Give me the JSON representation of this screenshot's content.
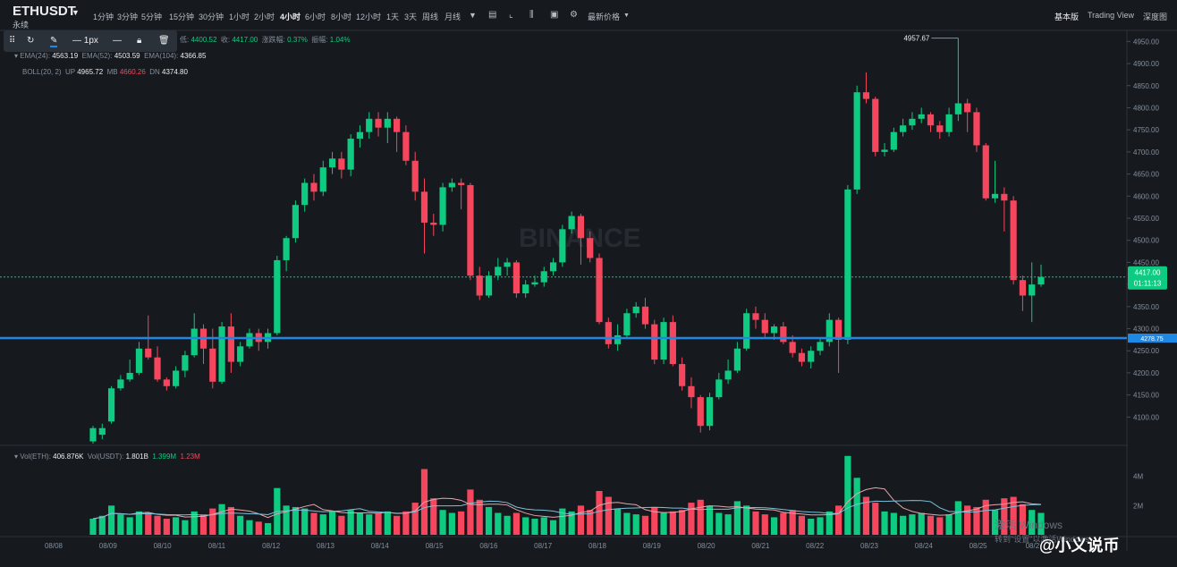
{
  "header": {
    "symbol": "ETHUSDT",
    "subtitle": "永续",
    "intervals": [
      "1分钟",
      "3分钟",
      "5分钟",
      "15分钟",
      "30分钟",
      "1小时",
      "2小时",
      "4小时",
      "6小时",
      "8小时",
      "12小时",
      "1天",
      "3天",
      "周线",
      "月线"
    ],
    "active_interval": "4小时",
    "price_type": "最新价格",
    "views": [
      "基本版",
      "Trading View",
      "深度图"
    ],
    "active_view": "基本版"
  },
  "drawbar": {
    "width_label": "1px"
  },
  "legend": {
    "ohlc": {
      "low_label": "低:",
      "low": "4400.52",
      "close_label": "收:",
      "close": "4417.00",
      "chg_label": "涨跌幅:",
      "chg": "0.37%",
      "amp_label": "振幅:",
      "amp": "1.04%"
    },
    "ema": {
      "ema24_label": "EMA(24):",
      "ema24": "4563.19",
      "ema52_label": "EMA(52):",
      "ema52": "4503.59",
      "ema104_label": "EMA(104):",
      "ema104": "4366.85"
    },
    "boll": {
      "label": "BOLL(20, 2)",
      "up_label": "UP",
      "up": "4965.72",
      "mb_label": "MB",
      "mb": "4660.26",
      "dn_label": "DN",
      "dn": "4374.80"
    },
    "vol": {
      "eth_label": "Vol(ETH):",
      "eth": "406.876K",
      "usdt_label": "Vol(USDT):",
      "usdt": "1.801B",
      "ma5": "1.399M",
      "ma10": "1.23M"
    }
  },
  "colors": {
    "up": "#0ecb81",
    "down": "#f6465d",
    "hline": "#1e88e5",
    "price_tag": "#0ecb81",
    "ma5": "#e6a5ae",
    "ma10": "#7ac1d9"
  },
  "chart_data": {
    "type": "candlestick",
    "x_ticks": [
      "08/08",
      "08/09",
      "08/10",
      "08/11",
      "08/12",
      "08/13",
      "08/14",
      "08/15",
      "08/16",
      "08/17",
      "08/18",
      "08/19",
      "08/20",
      "08/21",
      "08/22",
      "08/23",
      "08/24",
      "08/25",
      "08/2"
    ],
    "y_ticks": [
      "4950.00",
      "4900.00",
      "4850.00",
      "4800.00",
      "4750.00",
      "4700.00",
      "4650.00",
      "4600.00",
      "4550.00",
      "4500.00",
      "4450.00",
      "4400.00",
      "4350.00",
      "4300.00",
      "4250.00",
      "4200.00",
      "4150.00",
      "4100.00"
    ],
    "vol_ticks": [
      "4M",
      "2M"
    ],
    "ylim": [
      4040,
      4975
    ],
    "vol_max": 6,
    "candles": [
      {
        "o": 4045,
        "c": 4075,
        "h": 4080,
        "l": 4040,
        "v": 1.1
      },
      {
        "o": 4060,
        "c": 4075,
        "h": 4085,
        "l": 4050,
        "v": 1.3
      },
      {
        "o": 4090,
        "c": 4165,
        "h": 4170,
        "l": 4085,
        "v": 2.0
      },
      {
        "o": 4165,
        "c": 4185,
        "h": 4195,
        "l": 4160,
        "v": 1.4
      },
      {
        "o": 4185,
        "c": 4200,
        "h": 4230,
        "l": 4180,
        "v": 1.2
      },
      {
        "o": 4200,
        "c": 4255,
        "h": 4270,
        "l": 4195,
        "v": 1.6
      },
      {
        "o": 4255,
        "c": 4235,
        "h": 4330,
        "l": 4230,
        "v": 1.5
      },
      {
        "o": 4235,
        "c": 4185,
        "h": 4260,
        "l": 4180,
        "v": 1.3
      },
      {
        "o": 4185,
        "c": 4170,
        "h": 4190,
        "l": 4160,
        "v": 1.1
      },
      {
        "o": 4170,
        "c": 4205,
        "h": 4215,
        "l": 4165,
        "v": 1.2
      },
      {
        "o": 4205,
        "c": 4240,
        "h": 4250,
        "l": 4190,
        "v": 1.0
      },
      {
        "o": 4240,
        "c": 4300,
        "h": 4335,
        "l": 4235,
        "v": 1.6
      },
      {
        "o": 4300,
        "c": 4255,
        "h": 4310,
        "l": 4220,
        "v": 1.4
      },
      {
        "o": 4255,
        "c": 4180,
        "h": 4300,
        "l": 4165,
        "v": 1.8
      },
      {
        "o": 4180,
        "c": 4305,
        "h": 4315,
        "l": 4175,
        "v": 2.1
      },
      {
        "o": 4305,
        "c": 4225,
        "h": 4335,
        "l": 4200,
        "v": 1.9
      },
      {
        "o": 4225,
        "c": 4260,
        "h": 4270,
        "l": 4215,
        "v": 1.3
      },
      {
        "o": 4260,
        "c": 4290,
        "h": 4300,
        "l": 4255,
        "v": 1.0
      },
      {
        "o": 4290,
        "c": 4270,
        "h": 4300,
        "l": 4250,
        "v": 0.9
      },
      {
        "o": 4270,
        "c": 4290,
        "h": 4300,
        "l": 4255,
        "v": 0.8
      },
      {
        "o": 4290,
        "c": 4455,
        "h": 4465,
        "l": 4285,
        "v": 3.2
      },
      {
        "o": 4455,
        "c": 4505,
        "h": 4510,
        "l": 4430,
        "v": 2.0
      },
      {
        "o": 4505,
        "c": 4580,
        "h": 4590,
        "l": 4495,
        "v": 1.9
      },
      {
        "o": 4580,
        "c": 4630,
        "h": 4640,
        "l": 4565,
        "v": 1.8
      },
      {
        "o": 4630,
        "c": 4610,
        "h": 4650,
        "l": 4590,
        "v": 1.5
      },
      {
        "o": 4610,
        "c": 4665,
        "h": 4680,
        "l": 4600,
        "v": 1.4
      },
      {
        "o": 4665,
        "c": 4685,
        "h": 4700,
        "l": 4650,
        "v": 1.6
      },
      {
        "o": 4685,
        "c": 4660,
        "h": 4700,
        "l": 4640,
        "v": 1.3
      },
      {
        "o": 4660,
        "c": 4730,
        "h": 4740,
        "l": 4645,
        "v": 1.7
      },
      {
        "o": 4730,
        "c": 4745,
        "h": 4760,
        "l": 4710,
        "v": 1.5
      },
      {
        "o": 4745,
        "c": 4775,
        "h": 4790,
        "l": 4730,
        "v": 1.4
      },
      {
        "o": 4775,
        "c": 4755,
        "h": 4790,
        "l": 4735,
        "v": 1.5
      },
      {
        "o": 4755,
        "c": 4775,
        "h": 4790,
        "l": 4720,
        "v": 1.6
      },
      {
        "o": 4775,
        "c": 4745,
        "h": 4780,
        "l": 4700,
        "v": 1.3
      },
      {
        "o": 4745,
        "c": 4680,
        "h": 4760,
        "l": 4670,
        "v": 1.6
      },
      {
        "o": 4680,
        "c": 4610,
        "h": 4700,
        "l": 4590,
        "v": 2.2
      },
      {
        "o": 4610,
        "c": 4540,
        "h": 4640,
        "l": 4470,
        "v": 4.5
      },
      {
        "o": 4540,
        "c": 4535,
        "h": 4560,
        "l": 4510,
        "v": 2.5
      },
      {
        "o": 4535,
        "c": 4620,
        "h": 4630,
        "l": 4520,
        "v": 1.7
      },
      {
        "o": 4620,
        "c": 4630,
        "h": 4640,
        "l": 4610,
        "v": 1.5
      },
      {
        "o": 4630,
        "c": 4625,
        "h": 4640,
        "l": 4570,
        "v": 1.6
      },
      {
        "o": 4625,
        "c": 4420,
        "h": 4630,
        "l": 4410,
        "v": 3.1
      },
      {
        "o": 4420,
        "c": 4375,
        "h": 4440,
        "l": 4365,
        "v": 2.4
      },
      {
        "o": 4375,
        "c": 4420,
        "h": 4430,
        "l": 4370,
        "v": 1.9
      },
      {
        "o": 4420,
        "c": 4440,
        "h": 4460,
        "l": 4410,
        "v": 1.5
      },
      {
        "o": 4440,
        "c": 4450,
        "h": 4460,
        "l": 4420,
        "v": 1.3
      },
      {
        "o": 4450,
        "c": 4380,
        "h": 4455,
        "l": 4370,
        "v": 1.5
      },
      {
        "o": 4380,
        "c": 4400,
        "h": 4410,
        "l": 4370,
        "v": 1.2
      },
      {
        "o": 4400,
        "c": 4405,
        "h": 4420,
        "l": 4395,
        "v": 1.1
      },
      {
        "o": 4405,
        "c": 4430,
        "h": 4440,
        "l": 4395,
        "v": 1.2
      },
      {
        "o": 4430,
        "c": 4450,
        "h": 4460,
        "l": 4420,
        "v": 1.0
      },
      {
        "o": 4450,
        "c": 4525,
        "h": 4535,
        "l": 4440,
        "v": 1.8
      },
      {
        "o": 4525,
        "c": 4555,
        "h": 4565,
        "l": 4515,
        "v": 1.6
      },
      {
        "o": 4555,
        "c": 4505,
        "h": 4560,
        "l": 4445,
        "v": 2.0
      },
      {
        "o": 4505,
        "c": 4460,
        "h": 4520,
        "l": 4450,
        "v": 1.7
      },
      {
        "o": 4460,
        "c": 4315,
        "h": 4470,
        "l": 4310,
        "v": 3.0
      },
      {
        "o": 4315,
        "c": 4265,
        "h": 4325,
        "l": 4255,
        "v": 2.6
      },
      {
        "o": 4265,
        "c": 4285,
        "h": 4310,
        "l": 4250,
        "v": 1.8
      },
      {
        "o": 4285,
        "c": 4335,
        "h": 4345,
        "l": 4280,
        "v": 1.5
      },
      {
        "o": 4335,
        "c": 4350,
        "h": 4360,
        "l": 4325,
        "v": 1.4
      },
      {
        "o": 4350,
        "c": 4310,
        "h": 4370,
        "l": 4300,
        "v": 1.3
      },
      {
        "o": 4310,
        "c": 4230,
        "h": 4320,
        "l": 4220,
        "v": 1.9
      },
      {
        "o": 4230,
        "c": 4315,
        "h": 4325,
        "l": 4220,
        "v": 1.5
      },
      {
        "o": 4315,
        "c": 4220,
        "h": 4330,
        "l": 4215,
        "v": 1.6
      },
      {
        "o": 4220,
        "c": 4170,
        "h": 4235,
        "l": 4160,
        "v": 1.7
      },
      {
        "o": 4170,
        "c": 4145,
        "h": 4190,
        "l": 4120,
        "v": 2.2
      },
      {
        "o": 4145,
        "c": 4080,
        "h": 4150,
        "l": 4065,
        "v": 2.4
      },
      {
        "o": 4080,
        "c": 4145,
        "h": 4155,
        "l": 4070,
        "v": 2.0
      },
      {
        "o": 4145,
        "c": 4185,
        "h": 4200,
        "l": 4140,
        "v": 1.5
      },
      {
        "o": 4185,
        "c": 4205,
        "h": 4230,
        "l": 4175,
        "v": 1.4
      },
      {
        "o": 4205,
        "c": 4255,
        "h": 4270,
        "l": 4200,
        "v": 2.3
      },
      {
        "o": 4255,
        "c": 4335,
        "h": 4345,
        "l": 4250,
        "v": 2.0
      },
      {
        "o": 4335,
        "c": 4320,
        "h": 4350,
        "l": 4300,
        "v": 1.6
      },
      {
        "o": 4320,
        "c": 4290,
        "h": 4335,
        "l": 4280,
        "v": 1.4
      },
      {
        "o": 4290,
        "c": 4305,
        "h": 4310,
        "l": 4275,
        "v": 1.2
      },
      {
        "o": 4305,
        "c": 4270,
        "h": 4315,
        "l": 4265,
        "v": 1.5
      },
      {
        "o": 4270,
        "c": 4245,
        "h": 4285,
        "l": 4235,
        "v": 1.7
      },
      {
        "o": 4245,
        "c": 4225,
        "h": 4255,
        "l": 4215,
        "v": 1.3
      },
      {
        "o": 4225,
        "c": 4250,
        "h": 4260,
        "l": 4210,
        "v": 1.1
      },
      {
        "o": 4250,
        "c": 4270,
        "h": 4280,
        "l": 4240,
        "v": 1.2
      },
      {
        "o": 4270,
        "c": 4320,
        "h": 4335,
        "l": 4260,
        "v": 1.6
      },
      {
        "o": 4320,
        "c": 4275,
        "h": 4325,
        "l": 4200,
        "v": 2.0
      },
      {
        "o": 4275,
        "c": 4615,
        "h": 4625,
        "l": 4265,
        "v": 5.4
      },
      {
        "o": 4615,
        "c": 4835,
        "h": 4850,
        "l": 4605,
        "v": 3.9
      },
      {
        "o": 4835,
        "c": 4820,
        "h": 4880,
        "l": 4810,
        "v": 2.6
      },
      {
        "o": 4820,
        "c": 4700,
        "h": 4825,
        "l": 4690,
        "v": 2.2
      },
      {
        "o": 4700,
        "c": 4705,
        "h": 4720,
        "l": 4690,
        "v": 1.6
      },
      {
        "o": 4705,
        "c": 4745,
        "h": 4755,
        "l": 4700,
        "v": 1.5
      },
      {
        "o": 4745,
        "c": 4760,
        "h": 4775,
        "l": 4735,
        "v": 1.3
      },
      {
        "o": 4760,
        "c": 4775,
        "h": 4790,
        "l": 4750,
        "v": 1.4
      },
      {
        "o": 4775,
        "c": 4785,
        "h": 4800,
        "l": 4765,
        "v": 1.5
      },
      {
        "o": 4785,
        "c": 4760,
        "h": 4790,
        "l": 4745,
        "v": 1.3
      },
      {
        "o": 4760,
        "c": 4745,
        "h": 4770,
        "l": 4730,
        "v": 1.2
      },
      {
        "o": 4745,
        "c": 4785,
        "h": 4800,
        "l": 4735,
        "v": 1.4
      },
      {
        "o": 4785,
        "c": 4810,
        "h": 4957.67,
        "l": 4770,
        "v": 2.3
      },
      {
        "o": 4810,
        "c": 4790,
        "h": 4820,
        "l": 4745,
        "v": 2.0
      },
      {
        "o": 4790,
        "c": 4715,
        "h": 4800,
        "l": 4700,
        "v": 1.9
      },
      {
        "o": 4715,
        "c": 4595,
        "h": 4720,
        "l": 4590,
        "v": 2.4
      },
      {
        "o": 4595,
        "c": 4605,
        "h": 4680,
        "l": 4585,
        "v": 1.7
      },
      {
        "o": 4605,
        "c": 4590,
        "h": 4620,
        "l": 4520,
        "v": 2.5
      },
      {
        "o": 4590,
        "c": 4410,
        "h": 4600,
        "l": 4400,
        "v": 2.6
      },
      {
        "o": 4410,
        "c": 4375,
        "h": 4420,
        "l": 4340,
        "v": 2.1
      },
      {
        "o": 4375,
        "c": 4400,
        "h": 4450,
        "l": 4315,
        "v": 1.7
      },
      {
        "o": 4400,
        "c": 4417,
        "h": 4445,
        "l": 4395,
        "v": 1.5
      }
    ],
    "high_label": "4957.67",
    "current_price": "4417.00",
    "countdown": "01:11:13",
    "hline_label": "4278.75",
    "hline_value": 4278.75,
    "watermark": "BINANCE"
  },
  "overlay": {
    "win_line1": "激活 Windows",
    "win_line2": "转到\"设置\"以激活Windows",
    "author": "@小义说币"
  }
}
